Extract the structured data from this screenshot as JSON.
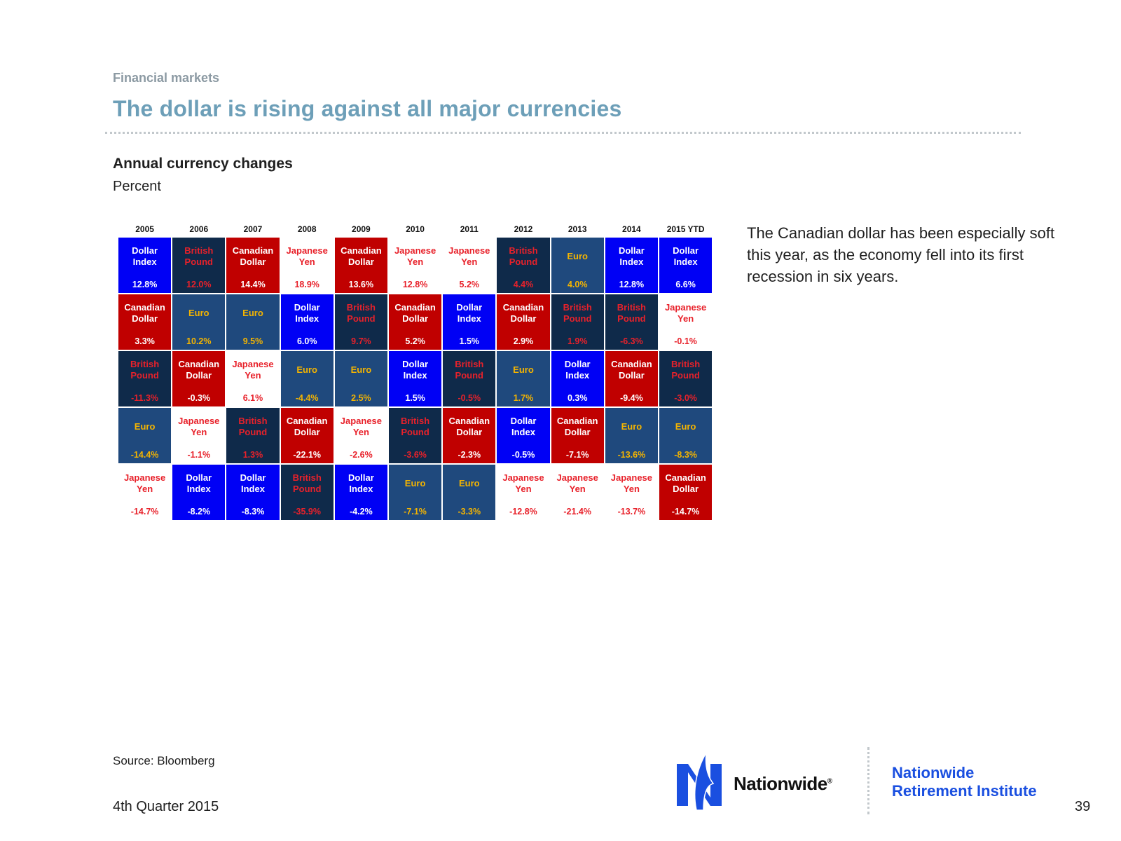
{
  "header": {
    "section": "Financial markets",
    "title": "The dollar is rising against all major currencies"
  },
  "chart_data": {
    "type": "table",
    "title": "Annual currency changes",
    "subtitle": "Percent",
    "years": [
      "2005",
      "2006",
      "2007",
      "2008",
      "2009",
      "2010",
      "2011",
      "2012",
      "2013",
      "2014",
      "2015 YTD"
    ],
    "colors": {
      "Dollar Index": {
        "bg": "#0000f5",
        "fg": "#ffffff"
      },
      "British Pound": {
        "bg": "#0f2a4a",
        "fg": "#e8212a"
      },
      "Canadian Dollar": {
        "bg": "#c00000",
        "fg": "#ffffff"
      },
      "Japanese Yen": {
        "bg": "#ffffff",
        "fg": "#e8212a"
      },
      "Euro": {
        "bg": "#1f497d",
        "fg": "#f4b400"
      }
    },
    "columns": [
      [
        [
          "Dollar Index",
          "12.8%"
        ],
        [
          "Canadian Dollar",
          "3.3%"
        ],
        [
          "British Pound",
          "-11.3%"
        ],
        [
          "Euro",
          "-14.4%"
        ],
        [
          "Japanese Yen",
          "-14.7%"
        ]
      ],
      [
        [
          "British Pound",
          "12.0%"
        ],
        [
          "Euro",
          "10.2%"
        ],
        [
          "Canadian Dollar",
          "-0.3%"
        ],
        [
          "Japanese Yen",
          "-1.1%"
        ],
        [
          "Dollar Index",
          "-8.2%"
        ]
      ],
      [
        [
          "Canadian Dollar",
          "14.4%"
        ],
        [
          "Euro",
          "9.5%"
        ],
        [
          "Japanese Yen",
          "6.1%"
        ],
        [
          "British Pound",
          "1.3%"
        ],
        [
          "Dollar Index",
          "-8.3%"
        ]
      ],
      [
        [
          "Japanese Yen",
          "18.9%"
        ],
        [
          "Dollar Index",
          "6.0%"
        ],
        [
          "Euro",
          "-4.4%"
        ],
        [
          "Canadian Dollar",
          "-22.1%"
        ],
        [
          "British Pound",
          "-35.9%"
        ]
      ],
      [
        [
          "Canadian Dollar",
          "13.6%"
        ],
        [
          "British Pound",
          "9.7%"
        ],
        [
          "Euro",
          "2.5%"
        ],
        [
          "Japanese Yen",
          "-2.6%"
        ],
        [
          "Dollar Index",
          "-4.2%"
        ]
      ],
      [
        [
          "Japanese Yen",
          "12.8%"
        ],
        [
          "Canadian Dollar",
          "5.2%"
        ],
        [
          "Dollar Index",
          "1.5%"
        ],
        [
          "British Pound",
          "-3.6%"
        ],
        [
          "Euro",
          "-7.1%"
        ]
      ],
      [
        [
          "Japanese Yen",
          "5.2%"
        ],
        [
          "Dollar Index",
          "1.5%"
        ],
        [
          "British Pound",
          "-0.5%"
        ],
        [
          "Canadian Dollar",
          "-2.3%"
        ],
        [
          "Euro",
          "-3.3%"
        ]
      ],
      [
        [
          "British Pound",
          "4.4%"
        ],
        [
          "Canadian Dollar",
          "2.9%"
        ],
        [
          "Euro",
          "1.7%"
        ],
        [
          "Dollar Index",
          "-0.5%"
        ],
        [
          "Japanese Yen",
          "-12.8%"
        ]
      ],
      [
        [
          "Euro",
          "4.0%"
        ],
        [
          "British Pound",
          "1.9%"
        ],
        [
          "Dollar Index",
          "0.3%"
        ],
        [
          "Canadian Dollar",
          "-7.1%"
        ],
        [
          "Japanese Yen",
          "-21.4%"
        ]
      ],
      [
        [
          "Dollar Index",
          "12.8%"
        ],
        [
          "British Pound",
          "-6.3%"
        ],
        [
          "Canadian Dollar",
          "-9.4%"
        ],
        [
          "Euro",
          "-13.6%"
        ],
        [
          "Japanese Yen",
          "-13.7%"
        ]
      ],
      [
        [
          "Dollar Index",
          "6.6%"
        ],
        [
          "Japanese Yen",
          "-0.1%"
        ],
        [
          "British Pound",
          "-3.0%"
        ],
        [
          "Euro",
          "-8.3%"
        ],
        [
          "Canadian Dollar",
          "-14.7%"
        ]
      ]
    ]
  },
  "commentary": "The Canadian dollar has been especially soft this year, as the economy fell into its first recession in six years.",
  "footer": {
    "source": "Source: Bloomberg",
    "quarter": "4th Quarter 2015",
    "brand": "Nationwide",
    "brand_mark": "®",
    "institute_line1": "Nationwide",
    "institute_line2": "Retirement Institute",
    "page_number": "39"
  }
}
